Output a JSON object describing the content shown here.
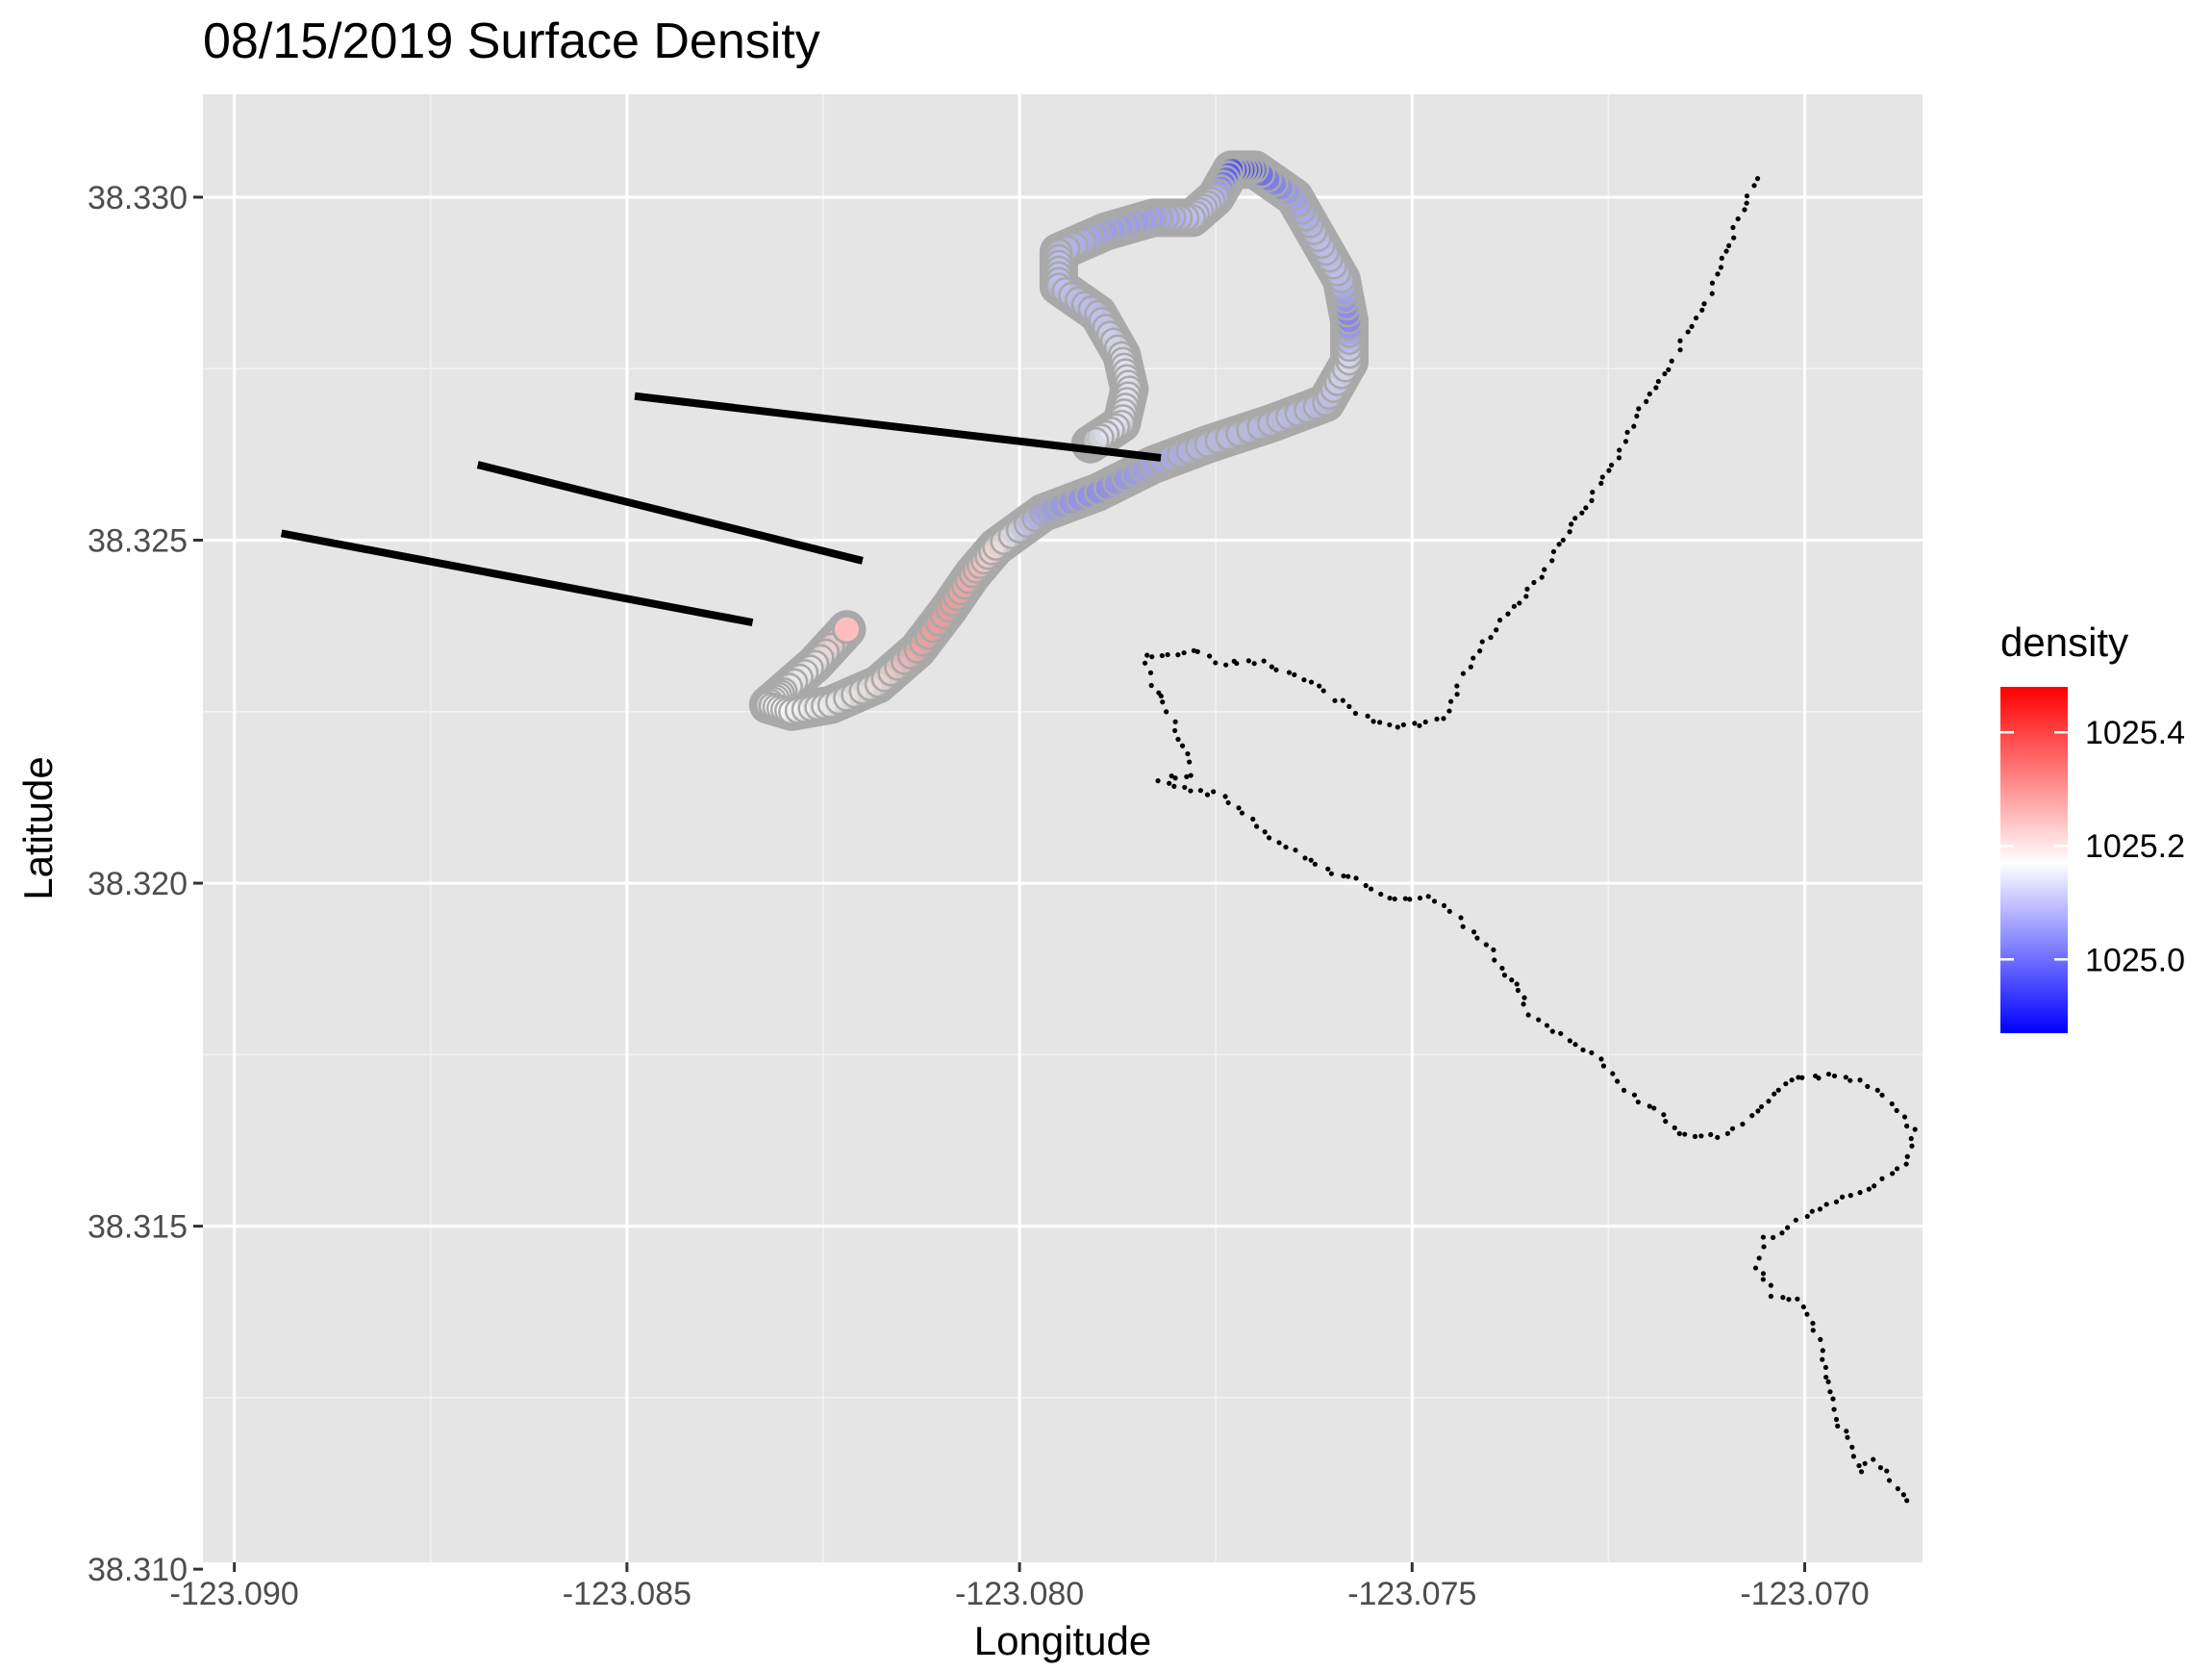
{
  "chart_data": {
    "type": "scatter",
    "title": "08/15/2019 Surface Density",
    "xlabel": "Longitude",
    "ylabel": "Latitude",
    "xlim": [
      -123.0904,
      -123.0685
    ],
    "ylim": [
      38.3101,
      38.3315
    ],
    "x_ticks": [
      -123.09,
      -123.085,
      -123.08,
      -123.075,
      -123.07
    ],
    "x_tick_labels": [
      "-123.090",
      "-123.085",
      "-123.080",
      "-123.075",
      "-123.070"
    ],
    "y_ticks": [
      38.31,
      38.315,
      38.32,
      38.325,
      38.33
    ],
    "y_tick_labels": [
      "38.310",
      "38.315",
      "38.320",
      "38.325",
      "38.330"
    ],
    "grid": true,
    "legend": {
      "title": "density",
      "position": "right",
      "colormap": [
        "#0000ff",
        "#ffffff",
        "#ff0000"
      ],
      "range": [
        1024.87,
        1025.48
      ],
      "midpoint": 1025.17,
      "ticks": [
        1025.0,
        1025.2,
        1025.4
      ],
      "tick_labels": [
        "1025.0",
        "1025.2",
        "1025.4"
      ]
    },
    "track_color": "#a9a9a9",
    "track_points": [
      {
        "lon": -123.0822,
        "lat": 38.3237,
        "density": 1025.25
      },
      {
        "lon": -123.0826,
        "lat": 38.3232,
        "density": 1025.17
      },
      {
        "lon": -123.083,
        "lat": 38.3228,
        "density": 1025.17
      },
      {
        "lon": -123.0832,
        "lat": 38.3226,
        "density": 1025.17
      },
      {
        "lon": -123.0829,
        "lat": 38.3225,
        "density": 1025.17
      },
      {
        "lon": -123.0824,
        "lat": 38.3226,
        "density": 1025.17
      },
      {
        "lon": -123.0818,
        "lat": 38.3229,
        "density": 1025.19
      },
      {
        "lon": -123.0813,
        "lat": 38.3234,
        "density": 1025.28
      },
      {
        "lon": -123.0809,
        "lat": 38.324,
        "density": 1025.3
      },
      {
        "lon": -123.0806,
        "lat": 38.3245,
        "density": 1025.26
      },
      {
        "lon": -123.0803,
        "lat": 38.3249,
        "density": 1025.2
      },
      {
        "lon": -123.0797,
        "lat": 38.3254,
        "density": 1025.05
      },
      {
        "lon": -123.079,
        "lat": 38.3257,
        "density": 1025.02
      },
      {
        "lon": -123.0783,
        "lat": 38.3261,
        "density": 1025.06
      },
      {
        "lon": -123.0776,
        "lat": 38.3264,
        "density": 1025.1
      },
      {
        "lon": -123.0768,
        "lat": 38.3267,
        "density": 1025.1
      },
      {
        "lon": -123.0761,
        "lat": 38.327,
        "density": 1025.1
      },
      {
        "lon": -123.0758,
        "lat": 38.3276,
        "density": 1025.15
      },
      {
        "lon": -123.0758,
        "lat": 38.3282,
        "density": 1025.0
      },
      {
        "lon": -123.0759,
        "lat": 38.3288,
        "density": 1025.1
      },
      {
        "lon": -123.0762,
        "lat": 38.3294,
        "density": 1025.1
      },
      {
        "lon": -123.0765,
        "lat": 38.33,
        "density": 1025.05
      },
      {
        "lon": -123.077,
        "lat": 38.3304,
        "density": 1024.95
      },
      {
        "lon": -123.0773,
        "lat": 38.3304,
        "density": 1024.95
      },
      {
        "lon": -123.0775,
        "lat": 38.33,
        "density": 1025.1
      },
      {
        "lon": -123.0778,
        "lat": 38.3297,
        "density": 1025.1
      },
      {
        "lon": -123.0783,
        "lat": 38.3297,
        "density": 1025.05
      },
      {
        "lon": -123.0789,
        "lat": 38.3295,
        "density": 1025.05
      },
      {
        "lon": -123.0795,
        "lat": 38.3292,
        "density": 1025.1
      },
      {
        "lon": -123.0795,
        "lat": 38.3287,
        "density": 1025.1
      },
      {
        "lon": -123.079,
        "lat": 38.3283,
        "density": 1025.1
      },
      {
        "lon": -123.0787,
        "lat": 38.3277,
        "density": 1025.15
      },
      {
        "lon": -123.0786,
        "lat": 38.3272,
        "density": 1025.15
      },
      {
        "lon": -123.0787,
        "lat": 38.3267,
        "density": 1025.15
      },
      {
        "lon": -123.0791,
        "lat": 38.3264,
        "density": 1025.15
      }
    ],
    "lines": [
      {
        "x": [
          -123.0894,
          -123.0834
        ],
        "y": [
          38.3251,
          38.3238
        ]
      },
      {
        "x": [
          -123.0869,
          -123.082
        ],
        "y": [
          38.3261,
          38.3247
        ]
      },
      {
        "x": [
          -123.0849,
          -123.0782
        ],
        "y": [
          38.3271,
          38.3262
        ]
      }
    ],
    "dotted_series": [
      {
        "name": "",
        "color": "#000000",
        "points": [
          [
            -123.0706,
            38.3303
          ],
          [
            -123.0708,
            38.3298
          ],
          [
            -123.071,
            38.3292
          ],
          [
            -123.0712,
            38.3286
          ],
          [
            -123.0715,
            38.328
          ],
          [
            -123.0718,
            38.3274
          ],
          [
            -123.0722,
            38.3267
          ],
          [
            -123.0725,
            38.326
          ],
          [
            -123.0729,
            38.3253
          ],
          [
            -123.0733,
            38.3246
          ],
          [
            -123.0737,
            38.324
          ],
          [
            -123.0741,
            38.3235
          ],
          [
            -123.0744,
            38.3229
          ],
          [
            -123.0746,
            38.3224
          ],
          [
            -123.0749,
            38.3223
          ],
          [
            -123.0752,
            38.3223
          ],
          [
            -123.0756,
            38.3224
          ],
          [
            -123.076,
            38.3227
          ],
          [
            -123.0764,
            38.323
          ],
          [
            -123.0769,
            38.3232
          ],
          [
            -123.0774,
            38.3232
          ],
          [
            -123.0778,
            38.3234
          ],
          [
            -123.0784,
            38.3233
          ],
          [
            -123.0783,
            38.3229
          ],
          [
            -123.0781,
            38.3225
          ],
          [
            -123.0779,
            38.322
          ],
          [
            -123.0778,
            38.3216
          ],
          [
            -123.0782,
            38.3215
          ],
          [
            -123.0775,
            38.3213
          ],
          [
            -123.0768,
            38.3207
          ],
          [
            -123.0764,
            38.3204
          ],
          [
            -123.0759,
            38.3201
          ],
          [
            -123.0756,
            38.32
          ],
          [
            -123.0753,
            38.3198
          ],
          [
            -123.0748,
            38.3198
          ],
          [
            -123.0744,
            38.3195
          ],
          [
            -123.074,
            38.319
          ],
          [
            -123.0737,
            38.3185
          ],
          [
            -123.0735,
            38.3181
          ],
          [
            -123.0731,
            38.3178
          ],
          [
            -123.0727,
            38.3175
          ],
          [
            -123.0723,
            38.317
          ],
          [
            -123.0719,
            38.3167
          ],
          [
            -123.0715,
            38.3163
          ],
          [
            -123.0711,
            38.3163
          ],
          [
            -123.0707,
            38.3166
          ],
          [
            -123.0704,
            38.3169
          ],
          [
            -123.0701,
            38.3172
          ],
          [
            -123.0697,
            38.3172
          ],
          [
            -123.0693,
            38.3171
          ],
          [
            -123.0689,
            38.3168
          ],
          [
            -123.0686,
            38.3164
          ],
          [
            -123.0687,
            38.3159
          ],
          [
            -123.0691,
            38.3156
          ],
          [
            -123.0695,
            38.3154
          ],
          [
            -123.0699,
            38.3152
          ],
          [
            -123.0702,
            38.315
          ],
          [
            -123.0705,
            38.3148
          ],
          [
            -123.0706,
            38.3144
          ],
          [
            -123.0704,
            38.314
          ],
          [
            -123.0701,
            38.3139
          ],
          [
            -123.0699,
            38.3136
          ],
          [
            -123.0698,
            38.3132
          ],
          [
            -123.0697,
            38.3127
          ],
          [
            -123.0696,
            38.3122
          ],
          [
            -123.0694,
            38.3118
          ],
          [
            -123.0693,
            38.3114
          ],
          [
            -123.0691,
            38.3116
          ],
          [
            -123.0689,
            38.3113
          ],
          [
            -123.0687,
            38.311
          ]
        ]
      }
    ]
  }
}
